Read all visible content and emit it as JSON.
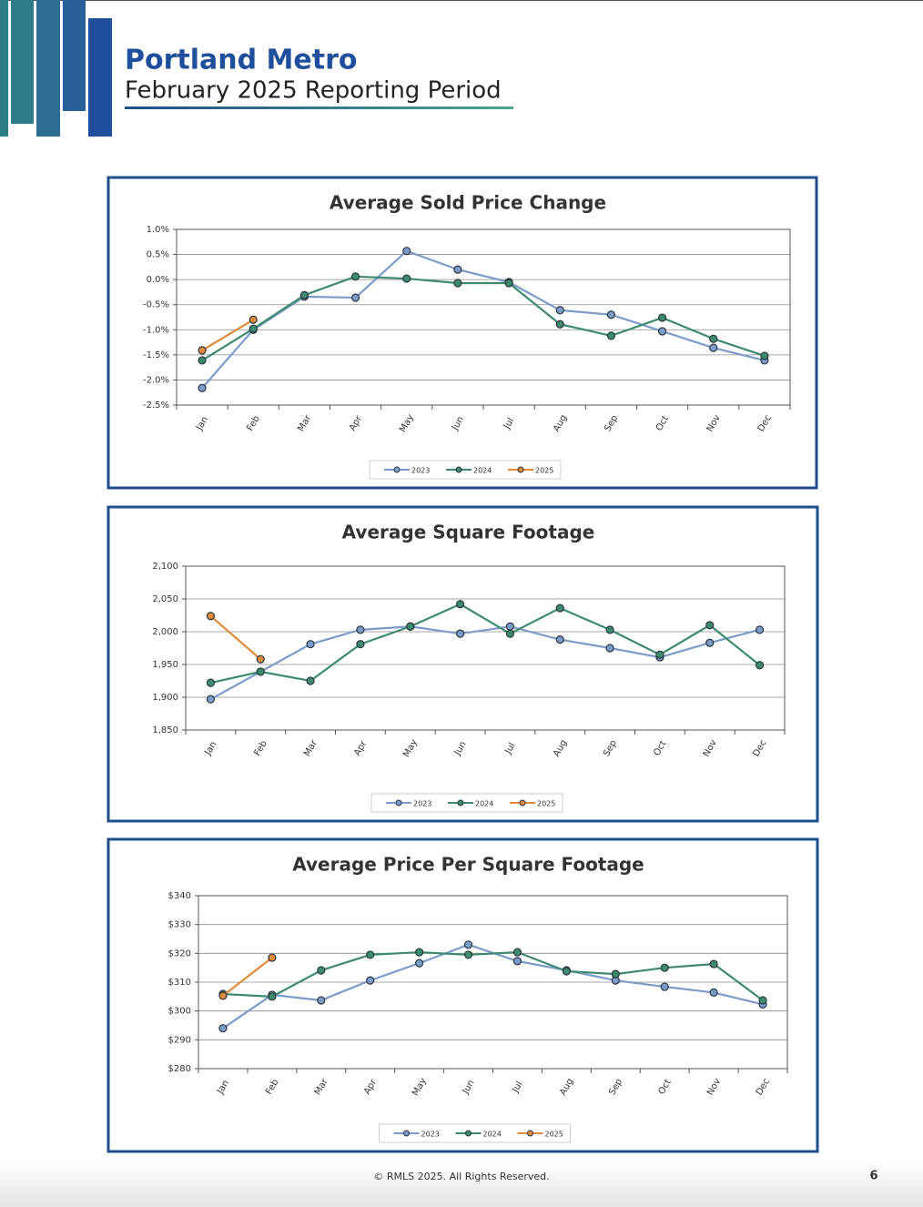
{
  "header": {
    "title": "Portland Metro",
    "subtitle": "February 2025 Reporting Period"
  },
  "chart_data": [
    {
      "type": "line",
      "title": "Average Sold Price Change",
      "categories": [
        "Jan",
        "Feb",
        "Mar",
        "Apr",
        "May",
        "Jun",
        "Jul",
        "Aug",
        "Sep",
        "Oct",
        "Nov",
        "Dec"
      ],
      "series": [
        {
          "name": "2023",
          "color": "#7b9bc9",
          "values": [
            -2.16,
            -1.0,
            -0.34,
            -0.36,
            0.57,
            0.2,
            -0.05,
            -0.61,
            -0.7,
            -1.03,
            -1.36,
            -1.61
          ]
        },
        {
          "name": "2024",
          "color": "#3e8a6e",
          "values": [
            -1.61,
            -0.98,
            -0.31,
            0.06,
            0.02,
            -0.07,
            -0.07,
            -0.89,
            -1.12,
            -0.76,
            -1.18,
            -1.52
          ]
        },
        {
          "name": "2025",
          "color": "#e08a3c",
          "values": [
            -1.41,
            -0.8,
            null,
            null,
            null,
            null,
            null,
            null,
            null,
            null,
            null,
            null
          ]
        }
      ],
      "ylim": [
        -2.5,
        1.0
      ],
      "yticks": [
        {
          "value": -2.5,
          "label": "-2.5%"
        },
        {
          "value": -2.0,
          "label": "-2.0%"
        },
        {
          "value": -1.5,
          "label": "-1.5%"
        },
        {
          "value": -1.0,
          "label": "-1.0%"
        },
        {
          "value": -0.5,
          "label": "-0.5%"
        },
        {
          "value": 0.0,
          "label": "0.0%"
        },
        {
          "value": 0.5,
          "label": "0.5%"
        },
        {
          "value": 1.0,
          "label": "1.0%"
        }
      ],
      "grid": true,
      "legend": "bottom"
    },
    {
      "type": "line",
      "title": "Average Square Footage",
      "categories": [
        "Jan",
        "Feb",
        "Mar",
        "Apr",
        "May",
        "Jun",
        "Jul",
        "Aug",
        "Sep",
        "Oct",
        "Nov",
        "Dec"
      ],
      "series": [
        {
          "name": "2023",
          "color": "#7b9bc9",
          "values": [
            1897,
            1939,
            1981,
            2003,
            2008,
            1997,
            2008,
            1988,
            1975,
            1961,
            1983,
            2003
          ]
        },
        {
          "name": "2024",
          "color": "#3e8a6e",
          "values": [
            1922,
            1939,
            1925,
            1981,
            2008,
            2042,
            1997,
            2036,
            2003,
            1965,
            2010,
            1949
          ]
        },
        {
          "name": "2025",
          "color": "#e08a3c",
          "values": [
            2024,
            1958,
            null,
            null,
            null,
            null,
            null,
            null,
            null,
            null,
            null,
            null
          ]
        }
      ],
      "ylim": [
        1850,
        2100
      ],
      "yticks": [
        {
          "value": 1850,
          "label": "1,850"
        },
        {
          "value": 1900,
          "label": "1,900"
        },
        {
          "value": 1950,
          "label": "1,950"
        },
        {
          "value": 2000,
          "label": "2,000"
        },
        {
          "value": 2050,
          "label": "2,050"
        },
        {
          "value": 2100,
          "label": "2,100"
        }
      ],
      "grid": true,
      "legend": "bottom"
    },
    {
      "type": "line",
      "title": "Average Price Per Square Footage",
      "categories": [
        "Jan",
        "Feb",
        "Mar",
        "Apr",
        "May",
        "Jun",
        "Jul",
        "Aug",
        "Sep",
        "Oct",
        "Nov",
        "Dec"
      ],
      "series": [
        {
          "name": "2023",
          "color": "#7b9bc9",
          "values": [
            294,
            305.6,
            303.7,
            310.6,
            316.6,
            323,
            317.3,
            314.1,
            310.6,
            308.4,
            306.4,
            302.3
          ]
        },
        {
          "name": "2024",
          "color": "#3e8a6e",
          "values": [
            305.9,
            305,
            314.1,
            319.5,
            320.4,
            319.5,
            320.4,
            313.8,
            312.8,
            315,
            316.3,
            303.7
          ]
        },
        {
          "name": "2025",
          "color": "#e08a3c",
          "values": [
            305.3,
            318.5,
            null,
            null,
            null,
            null,
            null,
            null,
            null,
            null,
            null,
            null
          ]
        }
      ],
      "ylim": [
        280,
        340
      ],
      "yticks": [
        {
          "value": 280,
          "label": "$280"
        },
        {
          "value": 290,
          "label": "$290"
        },
        {
          "value": 300,
          "label": "$300"
        },
        {
          "value": 310,
          "label": "$310"
        },
        {
          "value": 320,
          "label": "$320"
        },
        {
          "value": 330,
          "label": "$330"
        },
        {
          "value": 340,
          "label": "$340"
        }
      ],
      "grid": true,
      "legend": "bottom"
    }
  ],
  "footer": {
    "copyright": "© RMLS 2025. All Rights Reserved.",
    "page": "6"
  }
}
